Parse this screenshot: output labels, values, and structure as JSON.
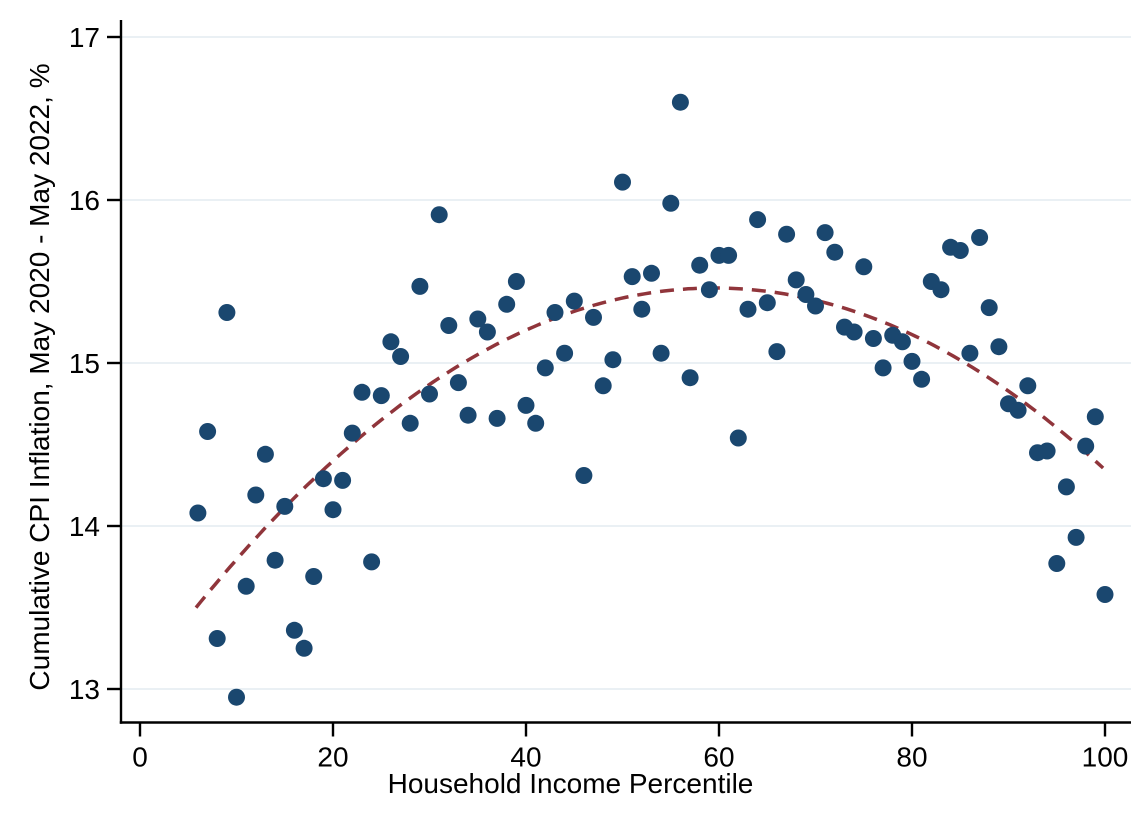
{
  "chart_data": {
    "type": "scatter",
    "title": "",
    "xlabel": "Household Income Percentile",
    "ylabel": "Cumulative CPI Inflation, May 2020 - May 2022, %",
    "x_ticks": [
      0,
      20,
      40,
      60,
      80,
      100
    ],
    "y_ticks": [
      13,
      14,
      15,
      16,
      17
    ],
    "xlim": [
      -2,
      102.5
    ],
    "ylim": [
      12.8,
      17.1
    ],
    "grid": "horizontal-only",
    "legend": "none",
    "colors": {
      "marker": "#1a476f",
      "fit_line": "#90353b",
      "gridline": "#e3ebf0",
      "axis": "#000000"
    },
    "fit_line": {
      "shape": "quadratic",
      "vertex_x": 59.5,
      "vertex_y": 15.46,
      "k": 0.00068,
      "x_start": 5.8,
      "x_end": 99.8,
      "style": "dashed"
    },
    "points": [
      [
        6,
        14.08
      ],
      [
        7,
        14.58
      ],
      [
        8,
        13.31
      ],
      [
        9,
        15.31
      ],
      [
        10,
        12.95
      ],
      [
        11,
        13.63
      ],
      [
        12,
        14.19
      ],
      [
        13,
        14.44
      ],
      [
        14,
        13.79
      ],
      [
        15,
        14.12
      ],
      [
        16,
        13.36
      ],
      [
        17,
        13.25
      ],
      [
        18,
        13.69
      ],
      [
        19,
        14.29
      ],
      [
        20,
        14.1
      ],
      [
        21,
        14.28
      ],
      [
        22,
        14.57
      ],
      [
        23,
        14.82
      ],
      [
        24,
        13.78
      ],
      [
        25,
        14.8
      ],
      [
        26,
        15.13
      ],
      [
        27,
        15.04
      ],
      [
        28,
        14.63
      ],
      [
        29,
        15.47
      ],
      [
        30,
        14.81
      ],
      [
        31,
        15.91
      ],
      [
        32,
        15.23
      ],
      [
        33,
        14.88
      ],
      [
        34,
        14.68
      ],
      [
        35,
        15.27
      ],
      [
        36,
        15.19
      ],
      [
        37,
        14.66
      ],
      [
        38,
        15.36
      ],
      [
        39,
        15.5
      ],
      [
        40,
        14.74
      ],
      [
        41,
        14.63
      ],
      [
        42,
        14.97
      ],
      [
        43,
        15.31
      ],
      [
        44,
        15.06
      ],
      [
        45,
        15.38
      ],
      [
        46,
        14.31
      ],
      [
        47,
        15.28
      ],
      [
        48,
        14.86
      ],
      [
        49,
        15.02
      ],
      [
        50,
        16.11
      ],
      [
        51,
        15.53
      ],
      [
        52,
        15.33
      ],
      [
        53,
        15.55
      ],
      [
        54,
        15.06
      ],
      [
        55,
        15.98
      ],
      [
        56,
        16.6
      ],
      [
        57,
        14.91
      ],
      [
        58,
        15.6
      ],
      [
        59,
        15.45
      ],
      [
        60,
        15.66
      ],
      [
        61,
        15.66
      ],
      [
        62,
        14.54
      ],
      [
        63,
        15.33
      ],
      [
        64,
        15.88
      ],
      [
        65,
        15.37
      ],
      [
        66,
        15.07
      ],
      [
        67,
        15.79
      ],
      [
        68,
        15.51
      ],
      [
        69,
        15.42
      ],
      [
        70,
        15.35
      ],
      [
        71,
        15.8
      ],
      [
        72,
        15.68
      ],
      [
        73,
        15.22
      ],
      [
        74,
        15.19
      ],
      [
        75,
        15.59
      ],
      [
        76,
        15.15
      ],
      [
        77,
        14.97
      ],
      [
        78,
        15.17
      ],
      [
        79,
        15.13
      ],
      [
        80,
        15.01
      ],
      [
        81,
        14.9
      ],
      [
        82,
        15.5
      ],
      [
        83,
        15.45
      ],
      [
        84,
        15.71
      ],
      [
        85,
        15.69
      ],
      [
        86,
        15.06
      ],
      [
        87,
        15.77
      ],
      [
        88,
        15.34
      ],
      [
        89,
        15.1
      ],
      [
        90,
        14.75
      ],
      [
        91,
        14.71
      ],
      [
        92,
        14.86
      ],
      [
        93,
        14.45
      ],
      [
        94,
        14.46
      ],
      [
        95,
        13.77
      ],
      [
        96,
        14.24
      ],
      [
        97,
        13.93
      ],
      [
        98,
        14.49
      ],
      [
        99,
        14.67
      ],
      [
        100,
        13.58
      ]
    ]
  }
}
